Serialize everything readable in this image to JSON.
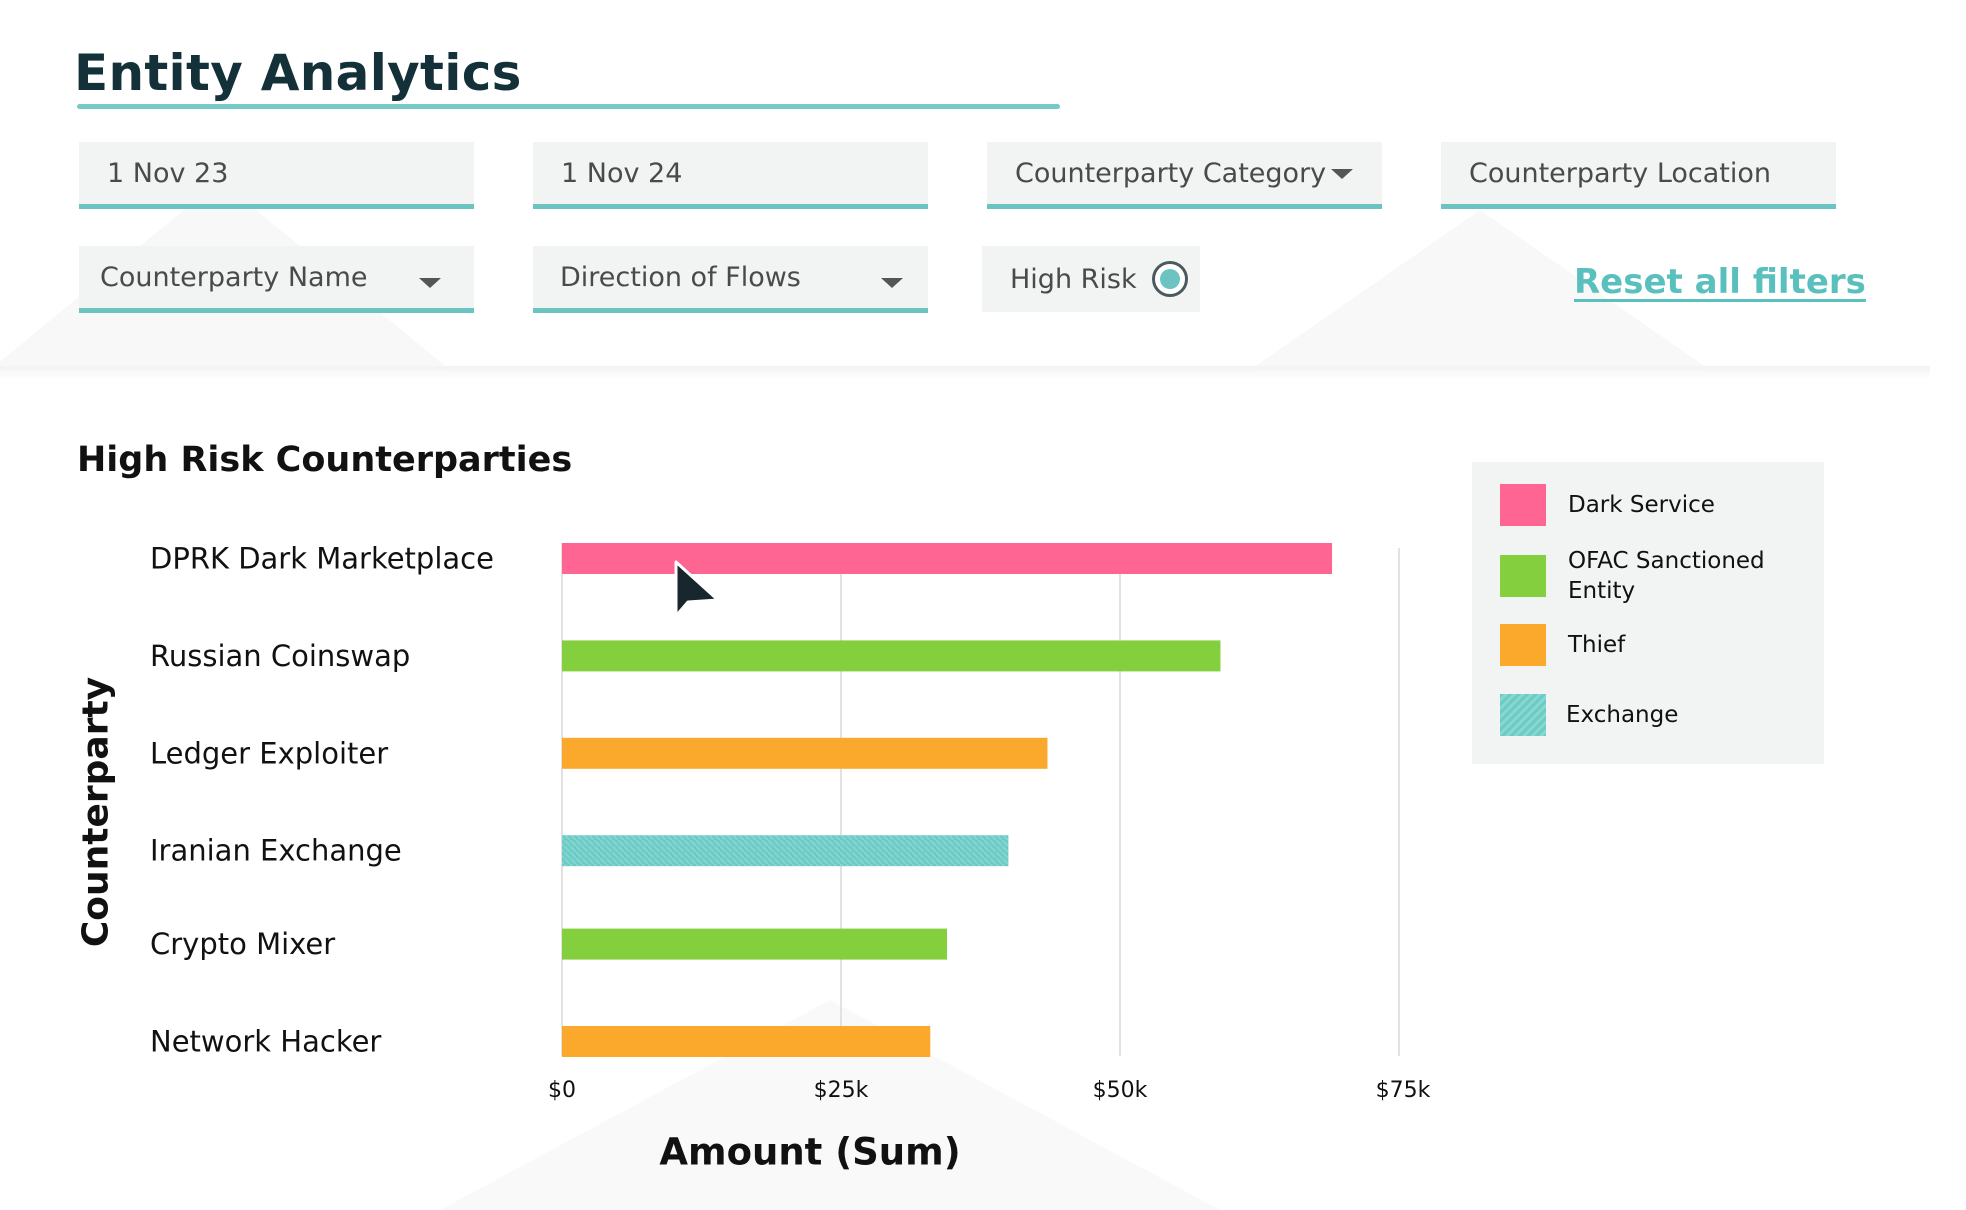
{
  "page": {
    "title": "Entity Analytics"
  },
  "filters": {
    "start_date": "1 Nov 23",
    "end_date": "1 Nov 24",
    "counterparty_category": "Counterparty Category",
    "counterparty_location": "Counterparty Location",
    "counterparty_name": "Counterparty Name",
    "direction_of_flows": "Direction of Flows",
    "high_risk": {
      "label": "High Risk",
      "on": true
    },
    "reset_label": "Reset all filters"
  },
  "colors": {
    "accent": "#6cc4c2",
    "dark_service": "#fe6592",
    "ofac": "#84cf3d",
    "thief": "#fba92d",
    "exchange": "#6dcbc5"
  },
  "cursor": "arrow-cursor-icon",
  "chart_data": {
    "type": "bar",
    "orientation": "horizontal",
    "title": "High Risk Counterparties",
    "xlabel": "Amount (Sum)",
    "ylabel": "Counterparty",
    "xlim": [
      0,
      75000
    ],
    "x_ticks": [
      {
        "value": 0,
        "label": "$0"
      },
      {
        "value": 25000,
        "label": "$25k"
      },
      {
        "value": 50000,
        "label": "$50k"
      },
      {
        "value": 75000,
        "label": "$75k"
      }
    ],
    "grid": true,
    "legend_position": "top-right",
    "categories": [
      "DPRK Dark Marketplace",
      "Russian Coinswap",
      "Ledger Exploiter",
      "Iranian Exchange",
      "Crypto Mixer",
      "Network Hacker"
    ],
    "values": [
      69000,
      59000,
      43500,
      40000,
      34500,
      33000
    ],
    "groups": [
      "Dark Service",
      "OFAC Sanctioned Entity",
      "Thief",
      "Exchange",
      "OFAC Sanctioned Entity",
      "Thief"
    ],
    "legend": [
      {
        "name": "Dark Service",
        "color": "#fe6592"
      },
      {
        "name": "OFAC Sanctioned Entity",
        "color": "#84cf3d"
      },
      {
        "name": "Thief",
        "color": "#fba92d"
      },
      {
        "name": "Exchange",
        "color": "#6dcbc5"
      }
    ]
  }
}
